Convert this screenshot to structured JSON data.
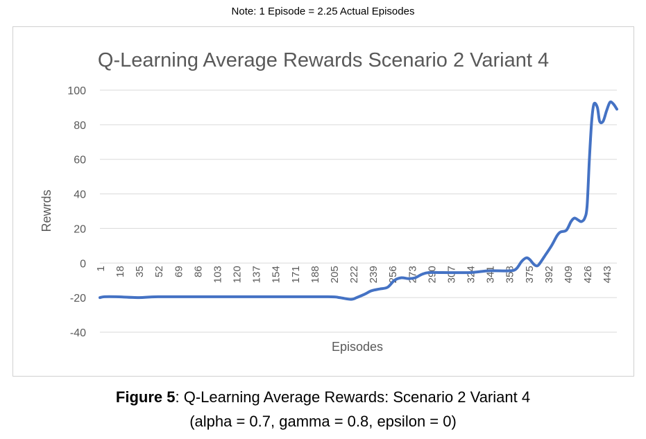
{
  "note": "Note: 1 Episode = 2.25 Actual Episodes",
  "caption": {
    "label": "Figure 5",
    "text": ": Q-Learning Average Rewards: Scenario 2 Variant 4",
    "params": "(alpha = 0.7, gamma = 0.8, epsilon = 0)"
  },
  "chart_data": {
    "type": "line",
    "title": "Q-Learning Average Rewards Scenario 2 Variant 4",
    "xlabel": "Episodes",
    "ylabel": "Rewrds",
    "ylim": [
      -40,
      100
    ],
    "yticks": [
      100,
      80,
      60,
      40,
      20,
      0,
      -20,
      -40
    ],
    "xlim": [
      1,
      452
    ],
    "xticks": [
      1,
      18,
      35,
      52,
      69,
      86,
      103,
      120,
      137,
      154,
      171,
      188,
      205,
      222,
      239,
      256,
      273,
      290,
      307,
      324,
      341,
      358,
      375,
      392,
      409,
      426,
      443
    ],
    "grid": true,
    "line_color": "#4472C4",
    "series": [
      {
        "x": [
          1,
          5,
          15,
          35,
          52,
          100,
          150,
          200,
          210,
          220,
          225,
          232,
          238,
          245,
          252,
          258,
          264,
          270,
          276,
          282,
          288,
          300,
          324,
          340,
          358,
          364,
          369,
          373,
          376,
          380,
          383,
          386,
          390,
          395,
          400,
          403,
          408,
          412,
          415,
          418,
          421,
          424,
          426,
          428,
          430,
          432,
          435,
          437,
          440,
          443,
          446,
          449,
          452
        ],
        "y": [
          -20,
          -19.5,
          -19.5,
          -20,
          -19.5,
          -19.5,
          -19.5,
          -19.5,
          -20,
          -21,
          -20,
          -18,
          -16,
          -15,
          -14,
          -10,
          -8.5,
          -9,
          -8.5,
          -6.5,
          -5.5,
          -5.5,
          -5.5,
          -4.5,
          -4.5,
          -3.5,
          1,
          3,
          2,
          -1,
          -1.5,
          1,
          5,
          10,
          16,
          18,
          19,
          24,
          26,
          25,
          24,
          26,
          33,
          60,
          82,
          92,
          90,
          82,
          82,
          88,
          93,
          92,
          89
        ]
      }
    ]
  }
}
